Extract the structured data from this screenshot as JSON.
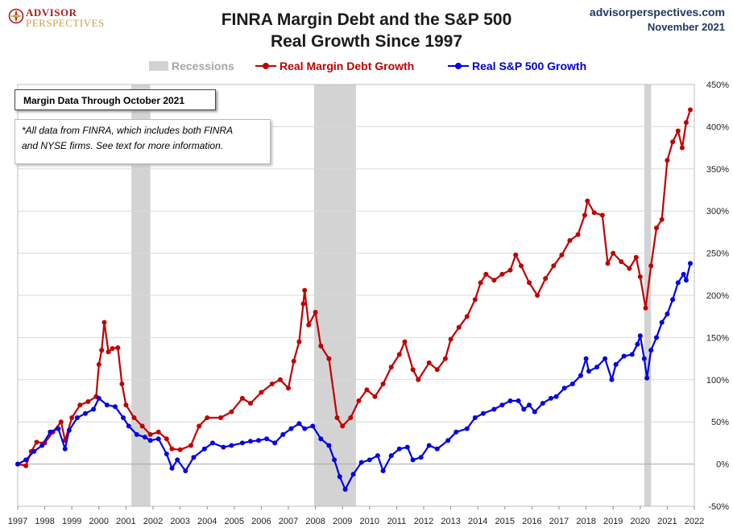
{
  "header": {
    "logo_line1": "ADVISOR",
    "logo_line2": "PERSPECTIVES",
    "title_line1": "FINRA Margin Debt and the S&P 500",
    "title_line2": "Real Growth Since 1997",
    "site": "advisorperspectives.com",
    "date": "November 2021"
  },
  "legend": {
    "recessions": "Recessions",
    "margin": "Real Margin Debt Growth",
    "sp500": "Real S&P 500 Growth"
  },
  "notes": {
    "box1": "Margin Data Through October 2021",
    "box2_line1": "*All data from FINRA, which includes both FINRA",
    "box2_line2": "and NYSE firms. See text for more information."
  },
  "colors": {
    "margin": "#c00000",
    "sp500": "#0000e6",
    "recession": "#d3d3d3",
    "grid": "#d9d9d9"
  },
  "chart_data": {
    "type": "line",
    "title": "FINRA Margin Debt and the S&P 500 Real Growth Since 1997",
    "xlim": [
      1997,
      2022
    ],
    "ylim": [
      -50,
      450
    ],
    "x_ticks": [
      "1997",
      "1998",
      "1999",
      "2000",
      "2001",
      "2002",
      "2003",
      "2004",
      "2005",
      "2006",
      "2007",
      "2008",
      "2009",
      "2010",
      "2011",
      "2012",
      "2013",
      "2014",
      "2015",
      "2016",
      "2017",
      "2018",
      "2019",
      "2020",
      "2021",
      "2022"
    ],
    "y_ticks": [
      "-50%",
      "0%",
      "50%",
      "100%",
      "150%",
      "200%",
      "250%",
      "300%",
      "350%",
      "400%",
      "450%"
    ],
    "y_tick_values": [
      -50,
      0,
      50,
      100,
      150,
      200,
      250,
      300,
      350,
      400,
      450
    ],
    "grid": "horizontal",
    "legend_position": "top",
    "recessions": [
      [
        2001.2,
        2001.9
      ],
      [
        2007.95,
        2009.5
      ],
      [
        2020.15,
        2020.4
      ]
    ],
    "series": [
      {
        "name": "Real Margin Debt Growth",
        "points": [
          [
            1997.0,
            0
          ],
          [
            1997.3,
            -2
          ],
          [
            1997.5,
            15
          ],
          [
            1997.7,
            26
          ],
          [
            1998.0,
            25
          ],
          [
            1998.3,
            38
          ],
          [
            1998.6,
            50
          ],
          [
            1998.75,
            28
          ],
          [
            1999.0,
            55
          ],
          [
            1999.3,
            70
          ],
          [
            1999.6,
            74
          ],
          [
            1999.9,
            80
          ],
          [
            2000.0,
            118
          ],
          [
            2000.1,
            135
          ],
          [
            2000.2,
            168
          ],
          [
            2000.35,
            133
          ],
          [
            2000.5,
            137
          ],
          [
            2000.7,
            138
          ],
          [
            2000.85,
            95
          ],
          [
            2001.0,
            70
          ],
          [
            2001.3,
            55
          ],
          [
            2001.6,
            45
          ],
          [
            2001.9,
            35
          ],
          [
            2002.2,
            38
          ],
          [
            2002.5,
            30
          ],
          [
            2002.7,
            18
          ],
          [
            2003.0,
            17
          ],
          [
            2003.4,
            22
          ],
          [
            2003.7,
            45
          ],
          [
            2004.0,
            55
          ],
          [
            2004.5,
            55
          ],
          [
            2004.9,
            62
          ],
          [
            2005.3,
            78
          ],
          [
            2005.6,
            72
          ],
          [
            2006.0,
            85
          ],
          [
            2006.4,
            95
          ],
          [
            2006.7,
            100
          ],
          [
            2007.0,
            90
          ],
          [
            2007.2,
            122
          ],
          [
            2007.4,
            145
          ],
          [
            2007.55,
            190
          ],
          [
            2007.6,
            206
          ],
          [
            2007.75,
            165
          ],
          [
            2008.0,
            180
          ],
          [
            2008.2,
            140
          ],
          [
            2008.5,
            125
          ],
          [
            2008.8,
            55
          ],
          [
            2009.0,
            45
          ],
          [
            2009.3,
            55
          ],
          [
            2009.6,
            75
          ],
          [
            2009.9,
            88
          ],
          [
            2010.2,
            80
          ],
          [
            2010.5,
            95
          ],
          [
            2010.8,
            115
          ],
          [
            2011.1,
            130
          ],
          [
            2011.3,
            145
          ],
          [
            2011.6,
            112
          ],
          [
            2011.8,
            100
          ],
          [
            2012.2,
            120
          ],
          [
            2012.5,
            112
          ],
          [
            2012.8,
            125
          ],
          [
            2013.0,
            148
          ],
          [
            2013.3,
            162
          ],
          [
            2013.6,
            175
          ],
          [
            2013.9,
            195
          ],
          [
            2014.1,
            215
          ],
          [
            2014.3,
            225
          ],
          [
            2014.6,
            218
          ],
          [
            2014.9,
            225
          ],
          [
            2015.2,
            230
          ],
          [
            2015.4,
            248
          ],
          [
            2015.6,
            235
          ],
          [
            2015.9,
            215
          ],
          [
            2016.2,
            200
          ],
          [
            2016.5,
            220
          ],
          [
            2016.8,
            235
          ],
          [
            2017.1,
            248
          ],
          [
            2017.4,
            265
          ],
          [
            2017.7,
            272
          ],
          [
            2017.95,
            295
          ],
          [
            2018.05,
            312
          ],
          [
            2018.3,
            298
          ],
          [
            2018.6,
            295
          ],
          [
            2018.8,
            238
          ],
          [
            2019.0,
            250
          ],
          [
            2019.3,
            240
          ],
          [
            2019.6,
            232
          ],
          [
            2019.85,
            245
          ],
          [
            2020.0,
            222
          ],
          [
            2020.2,
            185
          ],
          [
            2020.4,
            235
          ],
          [
            2020.6,
            280
          ],
          [
            2020.8,
            290
          ],
          [
            2021.0,
            360
          ],
          [
            2021.2,
            382
          ],
          [
            2021.4,
            395
          ],
          [
            2021.55,
            375
          ],
          [
            2021.7,
            405
          ],
          [
            2021.85,
            420
          ]
        ]
      },
      {
        "name": "Real S&P 500 Growth",
        "points": [
          [
            1997.0,
            0
          ],
          [
            1997.3,
            5
          ],
          [
            1997.6,
            15
          ],
          [
            1997.9,
            22
          ],
          [
            1998.2,
            38
          ],
          [
            1998.5,
            42
          ],
          [
            1998.75,
            18
          ],
          [
            1998.9,
            40
          ],
          [
            1999.2,
            55
          ],
          [
            1999.5,
            60
          ],
          [
            1999.8,
            65
          ],
          [
            2000.0,
            78
          ],
          [
            2000.3,
            70
          ],
          [
            2000.6,
            68
          ],
          [
            2000.9,
            55
          ],
          [
            2001.1,
            45
          ],
          [
            2001.4,
            35
          ],
          [
            2001.7,
            32
          ],
          [
            2001.9,
            28
          ],
          [
            2002.2,
            30
          ],
          [
            2002.5,
            12
          ],
          [
            2002.7,
            -5
          ],
          [
            2002.9,
            5
          ],
          [
            2003.2,
            -8
          ],
          [
            2003.5,
            8
          ],
          [
            2003.9,
            18
          ],
          [
            2004.2,
            25
          ],
          [
            2004.6,
            20
          ],
          [
            2004.9,
            22
          ],
          [
            2005.3,
            25
          ],
          [
            2005.6,
            27
          ],
          [
            2005.9,
            28
          ],
          [
            2006.2,
            30
          ],
          [
            2006.5,
            25
          ],
          [
            2006.8,
            35
          ],
          [
            2007.1,
            42
          ],
          [
            2007.4,
            48
          ],
          [
            2007.6,
            42
          ],
          [
            2007.9,
            45
          ],
          [
            2008.2,
            30
          ],
          [
            2008.5,
            22
          ],
          [
            2008.7,
            5
          ],
          [
            2008.9,
            -15
          ],
          [
            2009.1,
            -30
          ],
          [
            2009.4,
            -12
          ],
          [
            2009.7,
            2
          ],
          [
            2010.0,
            5
          ],
          [
            2010.3,
            10
          ],
          [
            2010.5,
            -8
          ],
          [
            2010.8,
            10
          ],
          [
            2011.1,
            18
          ],
          [
            2011.4,
            20
          ],
          [
            2011.6,
            5
          ],
          [
            2011.9,
            8
          ],
          [
            2012.2,
            22
          ],
          [
            2012.5,
            18
          ],
          [
            2012.9,
            28
          ],
          [
            2013.2,
            38
          ],
          [
            2013.6,
            42
          ],
          [
            2013.9,
            55
          ],
          [
            2014.2,
            60
          ],
          [
            2014.6,
            65
          ],
          [
            2014.9,
            70
          ],
          [
            2015.2,
            75
          ],
          [
            2015.5,
            75
          ],
          [
            2015.7,
            65
          ],
          [
            2015.9,
            70
          ],
          [
            2016.1,
            62
          ],
          [
            2016.4,
            72
          ],
          [
            2016.7,
            78
          ],
          [
            2016.9,
            80
          ],
          [
            2017.2,
            90
          ],
          [
            2017.5,
            95
          ],
          [
            2017.8,
            105
          ],
          [
            2018.0,
            125
          ],
          [
            2018.1,
            110
          ],
          [
            2018.4,
            115
          ],
          [
            2018.7,
            125
          ],
          [
            2018.95,
            100
          ],
          [
            2019.1,
            118
          ],
          [
            2019.4,
            128
          ],
          [
            2019.7,
            130
          ],
          [
            2019.9,
            142
          ],
          [
            2020.0,
            152
          ],
          [
            2020.15,
            125
          ],
          [
            2020.25,
            102
          ],
          [
            2020.4,
            135
          ],
          [
            2020.6,
            150
          ],
          [
            2020.8,
            168
          ],
          [
            2021.0,
            178
          ],
          [
            2021.2,
            195
          ],
          [
            2021.4,
            215
          ],
          [
            2021.6,
            225
          ],
          [
            2021.7,
            218
          ],
          [
            2021.85,
            238
          ]
        ]
      }
    ]
  }
}
